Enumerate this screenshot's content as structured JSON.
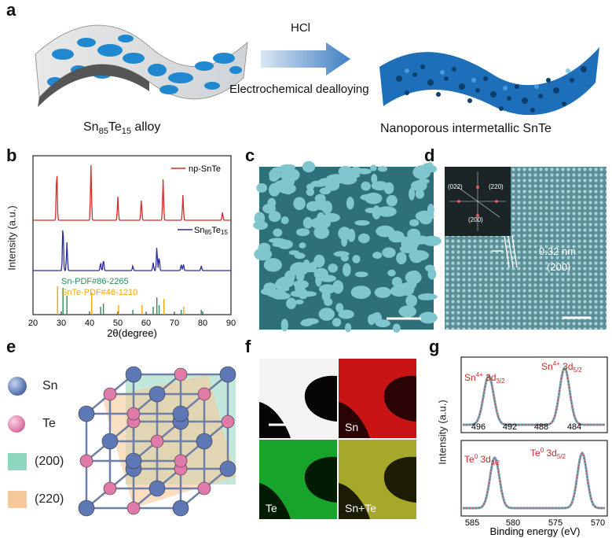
{
  "panel_a": {
    "label": "a",
    "left_caption_base": "Sn",
    "left_caption_sub1": "85",
    "left_caption_mid": "Te",
    "left_caption_sub2": "15",
    "left_caption_tail": " alloy",
    "arrow_top": "HCl",
    "arrow_bottom": "Electrochemical dealloying",
    "right_caption": "Nanoporous intermetallic SnTe"
  },
  "panel_b": {
    "label": "b",
    "ylabel": "Intensity (a.u.)",
    "xlabel": "2θ(degree)",
    "xticks": [
      "20",
      "30",
      "40",
      "50",
      "60",
      "70",
      "80",
      "90"
    ],
    "legend_np": "np-SnTe",
    "legend_alloy_base": "Sn",
    "legend_alloy_sub1": "85",
    "legend_alloy_mid": "Te",
    "legend_alloy_sub2": "15",
    "legend_sn_pdf": "Sn-PDF#86-2265",
    "legend_snte_pdf": "SnTe-PDF#46-1210",
    "colors": {
      "np": "#d62b2b",
      "alloy": "#2b2f9e",
      "sn_pdf": "#2e8b57",
      "snte_pdf": "#f0a800"
    }
  },
  "panel_c": {
    "label": "c"
  },
  "panel_d": {
    "label": "d",
    "fft_labels": [
      "(022)",
      "(220)",
      "(200)"
    ],
    "spacing": "0.32 nm",
    "plane": "(200)"
  },
  "panel_e": {
    "label": "e",
    "legend": [
      {
        "name": "Sn",
        "color": "#5d78b5"
      },
      {
        "name": "Te",
        "color": "#e07aa8"
      },
      {
        "name": "(200)",
        "color": "#8fd6c0"
      },
      {
        "name": "(220)",
        "color": "#f6c89a"
      }
    ]
  },
  "panel_f": {
    "label": "f",
    "tiles": [
      "Sn",
      "Te",
      "Sn+Te"
    ]
  },
  "panel_g": {
    "label": "g",
    "top_peak1_base": "Sn",
    "top_peak1_sup": "4+",
    "top_peak1_orb": " 3d",
    "top_peak1_sub": "3/2",
    "top_peak2_base": "Sn",
    "top_peak2_sup": "4+",
    "top_peak2_orb": " 3d",
    "top_peak2_sub": "5/2",
    "bot_peak1_base": "Te",
    "bot_peak1_sup": "0",
    "bot_peak1_orb": " 3d",
    "bot_peak1_sub": "3/2",
    "bot_peak2_base": "Te",
    "bot_peak2_sup": "0",
    "bot_peak2_orb": " 3d",
    "bot_peak2_sub": "5/2",
    "top_xticks": [
      "496",
      "492",
      "488",
      "484"
    ],
    "bot_xticks": [
      "585",
      "580",
      "575",
      "570"
    ],
    "ylabel": "Intensity (a.u.)",
    "xlabel": "Binding energy (eV)"
  }
}
